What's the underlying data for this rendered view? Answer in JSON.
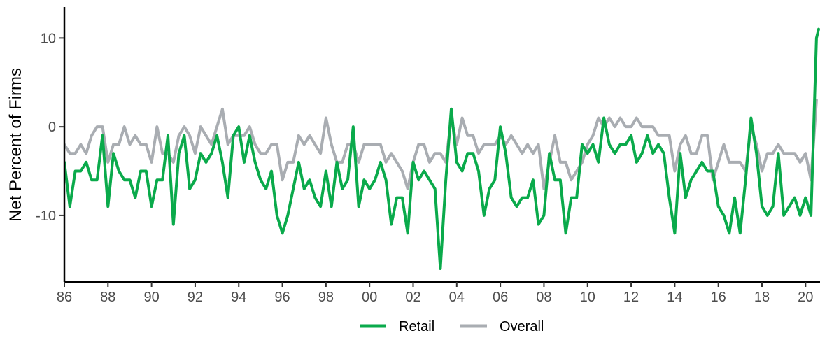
{
  "chart_data": {
    "type": "line",
    "xlabel": "",
    "ylabel": "Net Percent of Firms",
    "xlim": [
      1986.0,
      2020.6
    ],
    "ylim": [
      -17.5,
      13.5
    ],
    "x_ticks": [
      {
        "value": 1986,
        "label": "86"
      },
      {
        "value": 1988,
        "label": "88"
      },
      {
        "value": 1990,
        "label": "90"
      },
      {
        "value": 1992,
        "label": "92"
      },
      {
        "value": 1994,
        "label": "94"
      },
      {
        "value": 1996,
        "label": "96"
      },
      {
        "value": 1998,
        "label": "98"
      },
      {
        "value": 2000,
        "label": "00"
      },
      {
        "value": 2002,
        "label": "02"
      },
      {
        "value": 2004,
        "label": "04"
      },
      {
        "value": 2006,
        "label": "06"
      },
      {
        "value": 2008,
        "label": "08"
      },
      {
        "value": 2010,
        "label": "10"
      },
      {
        "value": 2012,
        "label": "12"
      },
      {
        "value": 2014,
        "label": "14"
      },
      {
        "value": 2016,
        "label": "16"
      },
      {
        "value": 2018,
        "label": "18"
      },
      {
        "value": 2020,
        "label": "20"
      }
    ],
    "y_ticks": [
      {
        "value": -10,
        "label": "-10"
      },
      {
        "value": 0,
        "label": "0"
      },
      {
        "value": 10,
        "label": "10"
      }
    ],
    "grid": false,
    "legend_position": "bottom",
    "series": [
      {
        "name": "Overall",
        "color": "#a9adb2",
        "points": [
          [
            1986.0,
            -2
          ],
          [
            1986.25,
            -3
          ],
          [
            1986.5,
            -3
          ],
          [
            1986.75,
            -2
          ],
          [
            1987.0,
            -3
          ],
          [
            1987.25,
            -1
          ],
          [
            1987.5,
            0
          ],
          [
            1987.75,
            0
          ],
          [
            1988.0,
            -4
          ],
          [
            1988.25,
            -2
          ],
          [
            1988.5,
            -2
          ],
          [
            1988.75,
            0
          ],
          [
            1989.0,
            -2
          ],
          [
            1989.25,
            -1
          ],
          [
            1989.5,
            -2
          ],
          [
            1989.75,
            -2
          ],
          [
            1990.0,
            -4
          ],
          [
            1990.25,
            0
          ],
          [
            1990.5,
            -3
          ],
          [
            1990.75,
            -3
          ],
          [
            1991.0,
            -4
          ],
          [
            1991.25,
            -1
          ],
          [
            1991.5,
            0
          ],
          [
            1991.75,
            -1
          ],
          [
            1992.0,
            -3
          ],
          [
            1992.25,
            0
          ],
          [
            1992.5,
            -1
          ],
          [
            1992.75,
            -2
          ],
          [
            1993.0,
            0
          ],
          [
            1993.25,
            2
          ],
          [
            1993.5,
            -2
          ],
          [
            1993.75,
            -1
          ],
          [
            1994.0,
            -1
          ],
          [
            1994.25,
            -1
          ],
          [
            1994.5,
            0
          ],
          [
            1994.75,
            -2
          ],
          [
            1995.0,
            -3
          ],
          [
            1995.25,
            -3
          ],
          [
            1995.5,
            -2
          ],
          [
            1995.75,
            -2
          ],
          [
            1996.0,
            -6
          ],
          [
            1996.25,
            -4
          ],
          [
            1996.5,
            -4
          ],
          [
            1996.75,
            -1
          ],
          [
            1997.0,
            -2
          ],
          [
            1997.25,
            -1
          ],
          [
            1997.5,
            -2
          ],
          [
            1997.75,
            -3
          ],
          [
            1998.0,
            1
          ],
          [
            1998.25,
            -2
          ],
          [
            1998.5,
            -4
          ],
          [
            1998.75,
            -4
          ],
          [
            1999.0,
            -2
          ],
          [
            1999.25,
            -2
          ],
          [
            1999.5,
            -4
          ],
          [
            1999.75,
            -2
          ],
          [
            2000.0,
            -2
          ],
          [
            2000.25,
            -2
          ],
          [
            2000.5,
            -2
          ],
          [
            2000.75,
            -4
          ],
          [
            2001.0,
            -3
          ],
          [
            2001.25,
            -4
          ],
          [
            2001.5,
            -5
          ],
          [
            2001.75,
            -7
          ],
          [
            2002.0,
            -4
          ],
          [
            2002.25,
            -2
          ],
          [
            2002.5,
            -2
          ],
          [
            2002.75,
            -4
          ],
          [
            2003.0,
            -3
          ],
          [
            2003.25,
            -3
          ],
          [
            2003.5,
            -4
          ],
          [
            2003.75,
            1
          ],
          [
            2004.0,
            -2
          ],
          [
            2004.25,
            1
          ],
          [
            2004.5,
            -1
          ],
          [
            2004.75,
            -1
          ],
          [
            2005.0,
            -3
          ],
          [
            2005.25,
            -2
          ],
          [
            2005.5,
            -2
          ],
          [
            2005.75,
            -2
          ],
          [
            2006.0,
            -1
          ],
          [
            2006.25,
            -2
          ],
          [
            2006.5,
            -1
          ],
          [
            2006.75,
            -2
          ],
          [
            2007.0,
            -3
          ],
          [
            2007.25,
            -2
          ],
          [
            2007.5,
            -3
          ],
          [
            2007.75,
            -2
          ],
          [
            2008.0,
            -7
          ],
          [
            2008.25,
            -4
          ],
          [
            2008.5,
            -1
          ],
          [
            2008.75,
            -4
          ],
          [
            2009.0,
            -4
          ],
          [
            2009.25,
            -6
          ],
          [
            2009.5,
            -5
          ],
          [
            2009.75,
            -4
          ],
          [
            2010.0,
            -2
          ],
          [
            2010.25,
            -1
          ],
          [
            2010.5,
            1
          ],
          [
            2010.75,
            0
          ],
          [
            2011.0,
            1
          ],
          [
            2011.25,
            0
          ],
          [
            2011.5,
            1
          ],
          [
            2011.75,
            0
          ],
          [
            2012.0,
            0
          ],
          [
            2012.25,
            1
          ],
          [
            2012.5,
            0
          ],
          [
            2012.75,
            0
          ],
          [
            2013.0,
            0
          ],
          [
            2013.25,
            -1
          ],
          [
            2013.5,
            -1
          ],
          [
            2013.75,
            -1
          ],
          [
            2014.0,
            -5
          ],
          [
            2014.25,
            -2
          ],
          [
            2014.5,
            -1
          ],
          [
            2014.75,
            -3
          ],
          [
            2015.0,
            -3
          ],
          [
            2015.25,
            -1
          ],
          [
            2015.5,
            -1
          ],
          [
            2015.75,
            -6
          ],
          [
            2016.0,
            -4
          ],
          [
            2016.25,
            -2
          ],
          [
            2016.5,
            -4
          ],
          [
            2016.75,
            -4
          ],
          [
            2017.0,
            -4
          ],
          [
            2017.25,
            -5
          ],
          [
            2017.5,
            0
          ],
          [
            2017.75,
            -2
          ],
          [
            2018.0,
            -5
          ],
          [
            2018.25,
            -3
          ],
          [
            2018.5,
            -3
          ],
          [
            2018.75,
            -2
          ],
          [
            2019.0,
            -3
          ],
          [
            2019.25,
            -3
          ],
          [
            2019.5,
            -3
          ],
          [
            2019.75,
            -4
          ],
          [
            2020.0,
            -3
          ],
          [
            2020.25,
            -6
          ],
          [
            2020.5,
            3
          ]
        ]
      },
      {
        "name": "Retail",
        "color": "#0aaa4b",
        "points": [
          [
            1986.0,
            -4
          ],
          [
            1986.25,
            -9
          ],
          [
            1986.5,
            -5
          ],
          [
            1986.75,
            -5
          ],
          [
            1987.0,
            -4
          ],
          [
            1987.25,
            -6
          ],
          [
            1987.5,
            -6
          ],
          [
            1987.75,
            -1
          ],
          [
            1988.0,
            -9
          ],
          [
            1988.25,
            -3
          ],
          [
            1988.5,
            -5
          ],
          [
            1988.75,
            -6
          ],
          [
            1989.0,
            -6
          ],
          [
            1989.25,
            -8
          ],
          [
            1989.5,
            -5
          ],
          [
            1989.75,
            -5
          ],
          [
            1990.0,
            -9
          ],
          [
            1990.25,
            -6
          ],
          [
            1990.5,
            -6
          ],
          [
            1990.75,
            -1
          ],
          [
            1991.0,
            -11
          ],
          [
            1991.25,
            -3
          ],
          [
            1991.5,
            -1
          ],
          [
            1991.75,
            -7
          ],
          [
            1992.0,
            -6
          ],
          [
            1992.25,
            -3
          ],
          [
            1992.5,
            -4
          ],
          [
            1992.75,
            -3
          ],
          [
            1993.0,
            -1
          ],
          [
            1993.25,
            -4
          ],
          [
            1993.5,
            -8
          ],
          [
            1993.75,
            -1
          ],
          [
            1994.0,
            0
          ],
          [
            1994.25,
            -4
          ],
          [
            1994.5,
            -1
          ],
          [
            1994.75,
            -4
          ],
          [
            1995.0,
            -6
          ],
          [
            1995.25,
            -7
          ],
          [
            1995.5,
            -5
          ],
          [
            1995.75,
            -10
          ],
          [
            1996.0,
            -12
          ],
          [
            1996.25,
            -10
          ],
          [
            1996.5,
            -7
          ],
          [
            1996.75,
            -4
          ],
          [
            1997.0,
            -7
          ],
          [
            1997.25,
            -6
          ],
          [
            1997.5,
            -8
          ],
          [
            1997.75,
            -9
          ],
          [
            1998.0,
            -5
          ],
          [
            1998.25,
            -9
          ],
          [
            1998.5,
            -4
          ],
          [
            1998.75,
            -7
          ],
          [
            1999.0,
            -6
          ],
          [
            1999.25,
            0
          ],
          [
            1999.5,
            -9
          ],
          [
            1999.75,
            -6
          ],
          [
            2000.0,
            -7
          ],
          [
            2000.25,
            -6
          ],
          [
            2000.5,
            -4
          ],
          [
            2000.75,
            -6
          ],
          [
            2001.0,
            -11
          ],
          [
            2001.25,
            -8
          ],
          [
            2001.5,
            -8
          ],
          [
            2001.75,
            -12
          ],
          [
            2002.0,
            -4
          ],
          [
            2002.25,
            -6
          ],
          [
            2002.5,
            -5
          ],
          [
            2002.75,
            -6
          ],
          [
            2003.0,
            -7
          ],
          [
            2003.25,
            -16
          ],
          [
            2003.5,
            -6
          ],
          [
            2003.75,
            2
          ],
          [
            2004.0,
            -4
          ],
          [
            2004.25,
            -5
          ],
          [
            2004.5,
            -3
          ],
          [
            2004.75,
            -3
          ],
          [
            2005.0,
            -5
          ],
          [
            2005.25,
            -10
          ],
          [
            2005.5,
            -7
          ],
          [
            2005.75,
            -6
          ],
          [
            2006.0,
            0
          ],
          [
            2006.25,
            -3
          ],
          [
            2006.5,
            -8
          ],
          [
            2006.75,
            -9
          ],
          [
            2007.0,
            -8
          ],
          [
            2007.25,
            -8
          ],
          [
            2007.5,
            -6
          ],
          [
            2007.75,
            -11
          ],
          [
            2008.0,
            -10
          ],
          [
            2008.25,
            -3
          ],
          [
            2008.5,
            -6
          ],
          [
            2008.75,
            -6
          ],
          [
            2009.0,
            -12
          ],
          [
            2009.25,
            -8
          ],
          [
            2009.5,
            -8
          ],
          [
            2009.75,
            -2
          ],
          [
            2010.0,
            -3
          ],
          [
            2010.25,
            -2
          ],
          [
            2010.5,
            -4
          ],
          [
            2010.75,
            1
          ],
          [
            2011.0,
            -2
          ],
          [
            2011.25,
            -3
          ],
          [
            2011.5,
            -2
          ],
          [
            2011.75,
            -2
          ],
          [
            2012.0,
            -1
          ],
          [
            2012.25,
            -4
          ],
          [
            2012.5,
            -3
          ],
          [
            2012.75,
            -1
          ],
          [
            2013.0,
            -3
          ],
          [
            2013.25,
            -2
          ],
          [
            2013.5,
            -3
          ],
          [
            2013.75,
            -8
          ],
          [
            2014.0,
            -12
          ],
          [
            2014.25,
            -3
          ],
          [
            2014.5,
            -8
          ],
          [
            2014.75,
            -6
          ],
          [
            2015.0,
            -5
          ],
          [
            2015.25,
            -4
          ],
          [
            2015.5,
            -5
          ],
          [
            2015.75,
            -5
          ],
          [
            2016.0,
            -9
          ],
          [
            2016.25,
            -10
          ],
          [
            2016.5,
            -12
          ],
          [
            2016.75,
            -8
          ],
          [
            2017.0,
            -12
          ],
          [
            2017.25,
            -6
          ],
          [
            2017.5,
            1
          ],
          [
            2017.75,
            -3
          ],
          [
            2018.0,
            -9
          ],
          [
            2018.25,
            -10
          ],
          [
            2018.5,
            -9
          ],
          [
            2018.75,
            -3
          ],
          [
            2019.0,
            -10
          ],
          [
            2019.25,
            -9
          ],
          [
            2019.5,
            -8
          ],
          [
            2019.75,
            -10
          ],
          [
            2020.0,
            -8
          ],
          [
            2020.25,
            -10
          ],
          [
            2020.5,
            10
          ],
          [
            2020.6,
            11
          ]
        ]
      }
    ],
    "legend": [
      {
        "name": "Retail",
        "color": "#0aaa4b"
      },
      {
        "name": "Overall",
        "color": "#a9adb2"
      }
    ]
  }
}
